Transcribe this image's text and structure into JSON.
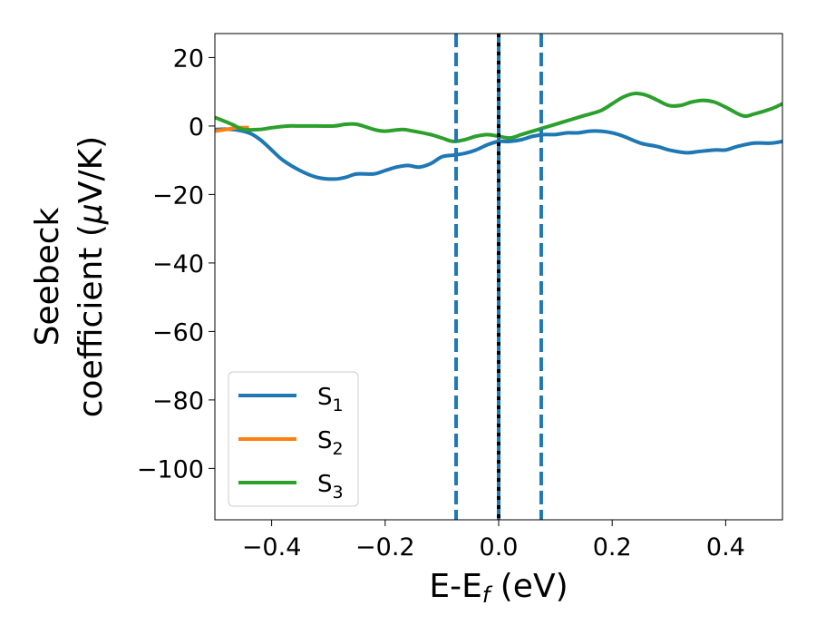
{
  "chart_data": {
    "type": "line",
    "xlabel": {
      "main": "E-E",
      "sub": "f",
      "unit": " (eV)"
    },
    "ylabel": {
      "line1": "Seebeck",
      "line2_prefix": "coefficient  (",
      "mu": "μ",
      "line2_suffix": "V/K)"
    },
    "xlim": [
      -0.5,
      0.5
    ],
    "ylim": [
      -115,
      27
    ],
    "xticks": [
      -0.4,
      -0.2,
      0.0,
      0.2,
      0.4
    ],
    "xtick_labels": [
      "−0.4",
      "−0.2",
      "0.0",
      "0.2",
      "0.4"
    ],
    "yticks": [
      20,
      0,
      -20,
      -40,
      -60,
      -80,
      -100
    ],
    "ytick_labels": [
      "20",
      "0",
      "−20",
      "−40",
      "−60",
      "−80",
      "−100"
    ],
    "grid": false,
    "legend_position": "lower-left",
    "vertical_lines": [
      {
        "x": -0.075,
        "style": "dashed",
        "color": "#1f77b4"
      },
      {
        "x": 0.0,
        "style": "solid",
        "color": "#1f77b4"
      },
      {
        "x": 0.0,
        "style": "dotted",
        "color": "#000000"
      },
      {
        "x": 0.075,
        "style": "dashed",
        "color": "#1f77b4"
      }
    ],
    "series": [
      {
        "name": "S",
        "sub": "1",
        "color": "#1f77b4",
        "x": [
          -0.5,
          -0.47,
          -0.44,
          -0.42,
          -0.4,
          -0.38,
          -0.35,
          -0.32,
          -0.29,
          -0.27,
          -0.25,
          -0.22,
          -0.2,
          -0.18,
          -0.16,
          -0.14,
          -0.12,
          -0.1,
          -0.08,
          -0.06,
          -0.04,
          -0.02,
          0.0,
          0.02,
          0.04,
          0.06,
          0.08,
          0.1,
          0.12,
          0.14,
          0.16,
          0.18,
          0.2,
          0.22,
          0.25,
          0.28,
          0.3,
          0.33,
          0.35,
          0.38,
          0.4,
          0.42,
          0.45,
          0.48,
          0.5
        ],
        "y": [
          -1,
          -1,
          -2,
          -4,
          -7,
          -10,
          -13,
          -15,
          -15.5,
          -15,
          -14,
          -14,
          -13,
          -12,
          -11.5,
          -12,
          -11,
          -9,
          -8.5,
          -8,
          -7,
          -5.5,
          -4.5,
          -4.5,
          -4,
          -3,
          -2.5,
          -2.5,
          -2,
          -2,
          -1.5,
          -1.5,
          -2,
          -3,
          -5,
          -6,
          -7,
          -7.8,
          -7.5,
          -7,
          -7,
          -6,
          -5,
          -5,
          -4.5
        ]
      },
      {
        "name": "S",
        "sub": "2",
        "color": "#ff7f0e",
        "x": [
          -0.5,
          -0.48,
          -0.46,
          -0.44
        ],
        "y": [
          -1.5,
          -1,
          -0.5,
          -0.5
        ]
      },
      {
        "name": "S",
        "sub": "3",
        "color": "#2ca02c",
        "x": [
          -0.5,
          -0.47,
          -0.45,
          -0.42,
          -0.4,
          -0.37,
          -0.35,
          -0.32,
          -0.29,
          -0.27,
          -0.25,
          -0.22,
          -0.2,
          -0.17,
          -0.15,
          -0.12,
          -0.1,
          -0.08,
          -0.06,
          -0.04,
          -0.02,
          0.0,
          0.02,
          0.04,
          0.06,
          0.08,
          0.1,
          0.13,
          0.15,
          0.18,
          0.2,
          0.22,
          0.24,
          0.26,
          0.28,
          0.3,
          0.32,
          0.34,
          0.36,
          0.38,
          0.4,
          0.43,
          0.45,
          0.48,
          0.5
        ],
        "y": [
          2.5,
          0.5,
          -1,
          -1,
          -0.5,
          0,
          0,
          0,
          0,
          0.5,
          0.5,
          -1,
          -1.5,
          -1,
          -1.5,
          -2.5,
          -3.5,
          -4.5,
          -4,
          -3,
          -2.5,
          -3,
          -3.5,
          -2.5,
          -1.5,
          -0.5,
          0.5,
          2,
          3,
          4.5,
          6.5,
          8.5,
          9.5,
          9,
          7.5,
          6,
          6,
          7,
          7.5,
          7,
          5.5,
          3,
          3.5,
          5,
          6.5
        ]
      }
    ]
  }
}
